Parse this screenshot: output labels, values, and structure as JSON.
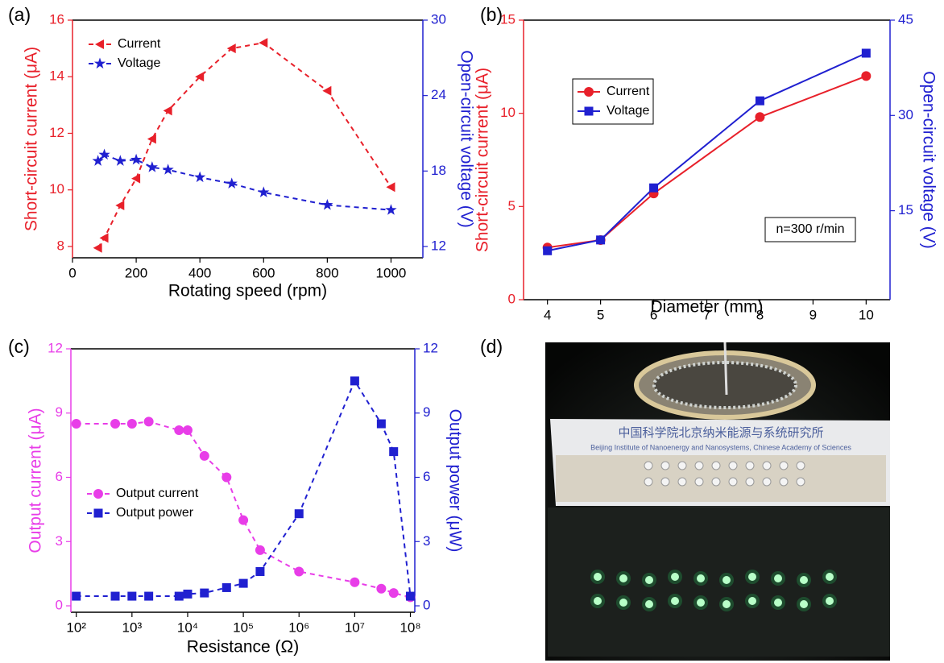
{
  "chart_data": [
    {
      "type": "line",
      "panel_label": "(a)",
      "xlabel": "Rotating speed (rpm)",
      "ylabel": "Short-circuit current (μA)",
      "y2label": "Open-circuit voltage (V)",
      "x": [
        80,
        100,
        150,
        200,
        250,
        300,
        400,
        500,
        600,
        800,
        1000
      ],
      "series": [
        {
          "name": "Current",
          "color": "#e8202a",
          "marker": "triangle-left",
          "linestyle": "dashed",
          "values": [
            7.95,
            8.3,
            9.45,
            10.4,
            11.8,
            12.8,
            14.0,
            15.0,
            15.2,
            13.5,
            10.1
          ]
        },
        {
          "name": "Voltage",
          "color": "#2020d0",
          "marker": "star",
          "linestyle": "dashed",
          "axis": "y2",
          "values": [
            18.8,
            19.3,
            18.8,
            18.9,
            18.3,
            18.1,
            17.5,
            17.0,
            16.3,
            15.3,
            14.9
          ]
        }
      ],
      "xlim": [
        0,
        1100
      ],
      "xticks": [
        0,
        200,
        400,
        600,
        800,
        1000
      ],
      "ylim": [
        7.6,
        16
      ],
      "yticks": [
        8,
        10,
        12,
        14,
        16
      ],
      "y2lim": [
        11.1,
        30
      ],
      "y2ticks": [
        12,
        18,
        24,
        30
      ],
      "legend": "upper left",
      "legend_frame": false
    },
    {
      "type": "line",
      "panel_label": "(b)",
      "xlabel": "Diameter (mm)",
      "ylabel": "Short-circuit current (μA)",
      "y2label": "Open-circuit voltage (V)",
      "x": [
        4,
        5,
        6,
        8,
        10
      ],
      "series": [
        {
          "name": "Current",
          "color": "#e8202a",
          "marker": "circle",
          "linestyle": "solid",
          "values": [
            2.8,
            3.2,
            5.7,
            9.8,
            12.0
          ]
        },
        {
          "name": "Voltage",
          "color": "#2020d0",
          "marker": "square",
          "linestyle": "solid",
          "axis": "y2",
          "values": [
            8.7,
            10.4,
            18.6,
            32.3,
            39.8
          ]
        }
      ],
      "xlim": [
        3.55,
        10.45
      ],
      "xticks": [
        4,
        5,
        6,
        7,
        8,
        9,
        10
      ],
      "ylim": [
        0,
        15
      ],
      "yticks": [
        0,
        5,
        10,
        15
      ],
      "y2lim": [
        1,
        45
      ],
      "y2ticks": [
        15,
        30,
        45
      ],
      "legend": "upper left",
      "legend_frame": true,
      "annotation": "n=300 r/min"
    },
    {
      "type": "line",
      "panel_label": "(c)",
      "xlabel": "Resistance (Ω)",
      "ylabel": "Output current (μA)",
      "y2label": "Output power (μW)",
      "xscale": "log",
      "x": [
        100,
        500,
        1000,
        2000,
        7000,
        10000,
        20000,
        50000,
        100000,
        200000,
        1000000,
        10000000,
        30000000,
        50000000,
        100000000
      ],
      "series": [
        {
          "name": "Output current",
          "color": "#e83de8",
          "marker": "circle",
          "linestyle": "dashed",
          "values": [
            8.5,
            8.5,
            8.5,
            8.6,
            8.2,
            8.2,
            7.0,
            6.0,
            4.0,
            2.6,
            1.6,
            1.1,
            0.8,
            0.6,
            0.4
          ]
        },
        {
          "name": "Output power",
          "color": "#2020d0",
          "marker": "square",
          "linestyle": "dashed",
          "axis": "y2",
          "values": [
            0.45,
            0.45,
            0.45,
            0.45,
            0.45,
            0.55,
            0.6,
            0.85,
            1.05,
            1.6,
            4.3,
            10.5,
            8.5,
            7.2,
            0.45
          ]
        }
      ],
      "xlim": [
        80,
        120000000
      ],
      "xticks": [
        {
          "value": 100,
          "label": "10²"
        },
        {
          "value": 1000,
          "label": "10³"
        },
        {
          "value": 10000,
          "label": "10⁴"
        },
        {
          "value": 100000,
          "label": "10⁵"
        },
        {
          "value": 1000000,
          "label": "10⁶"
        },
        {
          "value": 10000000,
          "label": "10⁷"
        },
        {
          "value": 100000000,
          "label": "10⁸"
        }
      ],
      "ylim": [
        -0.3,
        12
      ],
      "yticks": [
        0,
        3,
        6,
        9,
        12
      ],
      "y2lim": [
        -0.3,
        12
      ],
      "y2ticks": [
        0,
        3,
        6,
        9,
        12
      ],
      "legend": "lower left",
      "legend_frame": false
    },
    {
      "type": "image",
      "panel_label": "(d)",
      "image_texts": [
        "中国科学院北京纳米能源与系统研究所",
        "Beijing Institute of Nanoenergy and Nanosystems, Chinese Academy of Sciences"
      ]
    }
  ]
}
